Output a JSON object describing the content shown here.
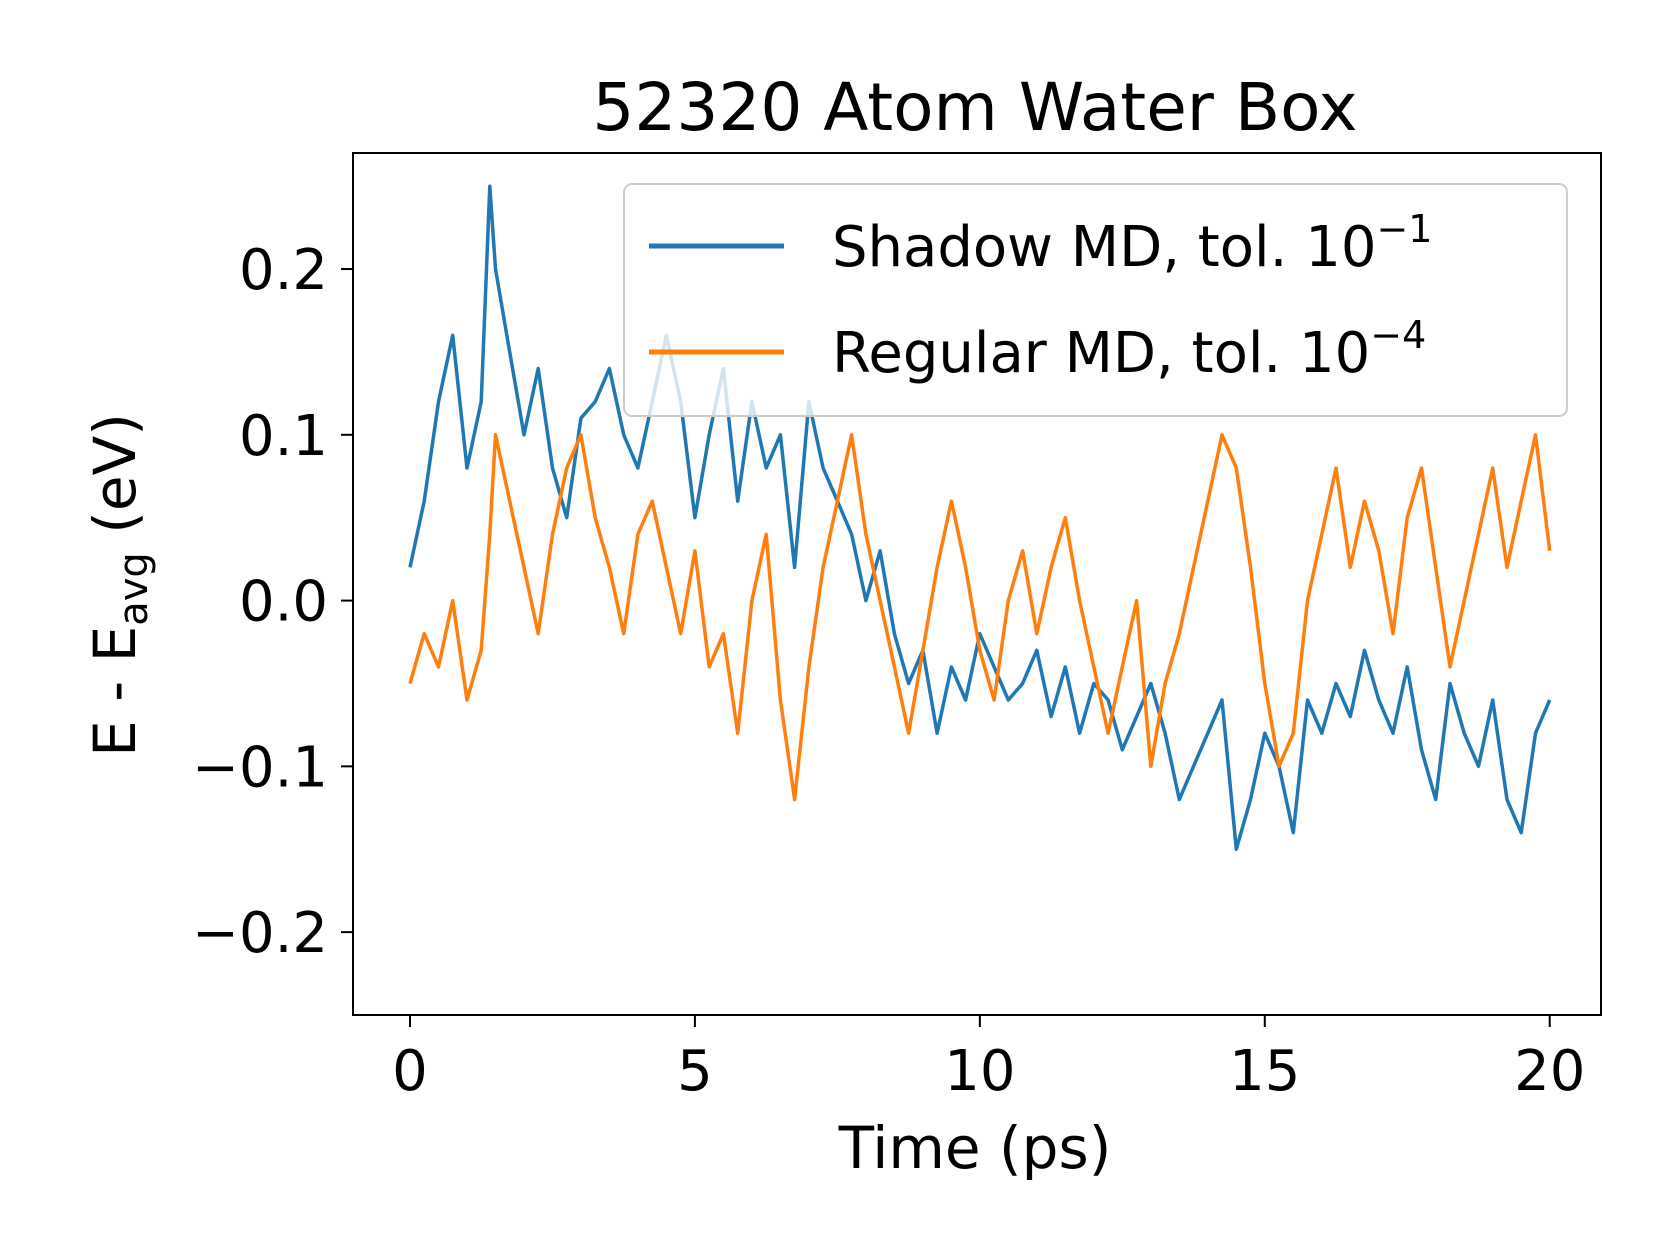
{
  "chart_data": {
    "type": "line",
    "title": "52320 Atom Water Box",
    "xlabel": "Time (ps)",
    "ylabel": {
      "base": "E - E",
      "sub": "avg",
      "tail": " (eV)"
    },
    "xlim": [
      -1,
      20.9
    ],
    "ylim": [
      -0.25,
      0.27
    ],
    "xticks": [
      0,
      5,
      10,
      15,
      20
    ],
    "xtick_labels": [
      "0",
      "5",
      "10",
      "15",
      "20"
    ],
    "yticks": [
      -0.2,
      -0.1,
      0.0,
      0.1,
      0.2
    ],
    "ytick_labels": [
      "−0.2",
      "−0.1",
      "0.0",
      "0.1",
      "0.2"
    ],
    "grid": false,
    "legend_position": "top-right",
    "series": [
      {
        "name": "Shadow MD, tol.",
        "exponent": "−1",
        "color": "#1f77b4",
        "x": [
          0,
          0.25,
          0.5,
          0.75,
          1.0,
          1.25,
          1.4,
          1.5,
          1.75,
          2.0,
          2.25,
          2.5,
          2.75,
          3.0,
          3.25,
          3.5,
          3.75,
          4.0,
          4.25,
          4.5,
          4.75,
          5.0,
          5.25,
          5.5,
          5.75,
          6.0,
          6.25,
          6.5,
          6.75,
          7.0,
          7.25,
          7.5,
          7.75,
          8.0,
          8.25,
          8.5,
          8.75,
          9.0,
          9.25,
          9.5,
          9.75,
          10.0,
          10.25,
          10.5,
          10.75,
          11.0,
          11.25,
          11.5,
          11.75,
          12.0,
          12.25,
          12.5,
          12.75,
          13.0,
          13.25,
          13.5,
          13.75,
          14.0,
          14.25,
          14.5,
          14.75,
          15.0,
          15.25,
          15.5,
          15.75,
          16.0,
          16.25,
          16.5,
          16.75,
          17.0,
          17.25,
          17.5,
          17.75,
          18.0,
          18.25,
          18.5,
          18.75,
          19.0,
          19.25,
          19.5,
          19.75,
          20.0
        ],
        "y": [
          0.02,
          0.06,
          0.12,
          0.16,
          0.08,
          0.12,
          0.25,
          0.2,
          0.15,
          0.1,
          0.14,
          0.08,
          0.05,
          0.11,
          0.12,
          0.14,
          0.1,
          0.08,
          0.12,
          0.16,
          0.12,
          0.05,
          0.1,
          0.14,
          0.06,
          0.12,
          0.08,
          0.1,
          0.02,
          0.12,
          0.08,
          0.06,
          0.04,
          0.0,
          0.03,
          -0.02,
          -0.05,
          -0.03,
          -0.08,
          -0.04,
          -0.06,
          -0.02,
          -0.04,
          -0.06,
          -0.05,
          -0.03,
          -0.07,
          -0.04,
          -0.08,
          -0.05,
          -0.06,
          -0.09,
          -0.07,
          -0.05,
          -0.08,
          -0.12,
          -0.1,
          -0.08,
          -0.06,
          -0.15,
          -0.12,
          -0.08,
          -0.1,
          -0.14,
          -0.06,
          -0.08,
          -0.05,
          -0.07,
          -0.03,
          -0.06,
          -0.08,
          -0.04,
          -0.09,
          -0.12,
          -0.05,
          -0.08,
          -0.1,
          -0.06,
          -0.12,
          -0.14,
          -0.08,
          -0.06
        ]
      },
      {
        "name": "Regular MD, tol.",
        "exponent": "−4",
        "color": "#ff7f0e",
        "x": [
          0,
          0.25,
          0.5,
          0.75,
          1.0,
          1.25,
          1.4,
          1.5,
          1.75,
          2.0,
          2.25,
          2.5,
          2.75,
          3.0,
          3.25,
          3.5,
          3.75,
          4.0,
          4.25,
          4.5,
          4.75,
          5.0,
          5.25,
          5.5,
          5.75,
          6.0,
          6.25,
          6.5,
          6.75,
          7.0,
          7.25,
          7.5,
          7.75,
          8.0,
          8.25,
          8.5,
          8.75,
          9.0,
          9.25,
          9.5,
          9.75,
          10.0,
          10.25,
          10.5,
          10.75,
          11.0,
          11.25,
          11.5,
          11.75,
          12.0,
          12.25,
          12.5,
          12.75,
          13.0,
          13.25,
          13.5,
          13.75,
          14.0,
          14.25,
          14.5,
          14.75,
          15.0,
          15.25,
          15.5,
          15.75,
          16.0,
          16.25,
          16.5,
          16.75,
          17.0,
          17.25,
          17.5,
          17.75,
          18.0,
          18.25,
          18.5,
          18.75,
          19.0,
          19.25,
          19.5,
          19.75,
          20.0
        ],
        "y": [
          -0.05,
          -0.02,
          -0.04,
          0.0,
          -0.06,
          -0.03,
          0.04,
          0.1,
          0.06,
          0.02,
          -0.02,
          0.04,
          0.08,
          0.1,
          0.05,
          0.02,
          -0.02,
          0.04,
          0.06,
          0.02,
          -0.02,
          0.03,
          -0.04,
          -0.02,
          -0.08,
          0.0,
          0.04,
          -0.06,
          -0.12,
          -0.04,
          0.02,
          0.06,
          0.1,
          0.04,
          0.0,
          -0.04,
          -0.08,
          -0.03,
          0.02,
          0.06,
          0.02,
          -0.03,
          -0.06,
          0.0,
          0.03,
          -0.02,
          0.02,
          0.05,
          0.0,
          -0.04,
          -0.08,
          -0.04,
          0.0,
          -0.1,
          -0.05,
          -0.02,
          0.02,
          0.06,
          0.1,
          0.08,
          0.02,
          -0.05,
          -0.1,
          -0.08,
          0.0,
          0.04,
          0.08,
          0.02,
          0.06,
          0.03,
          -0.02,
          0.05,
          0.08,
          0.02,
          -0.04,
          0.0,
          0.04,
          0.08,
          0.02,
          0.06,
          0.1,
          0.03
        ]
      }
    ]
  }
}
